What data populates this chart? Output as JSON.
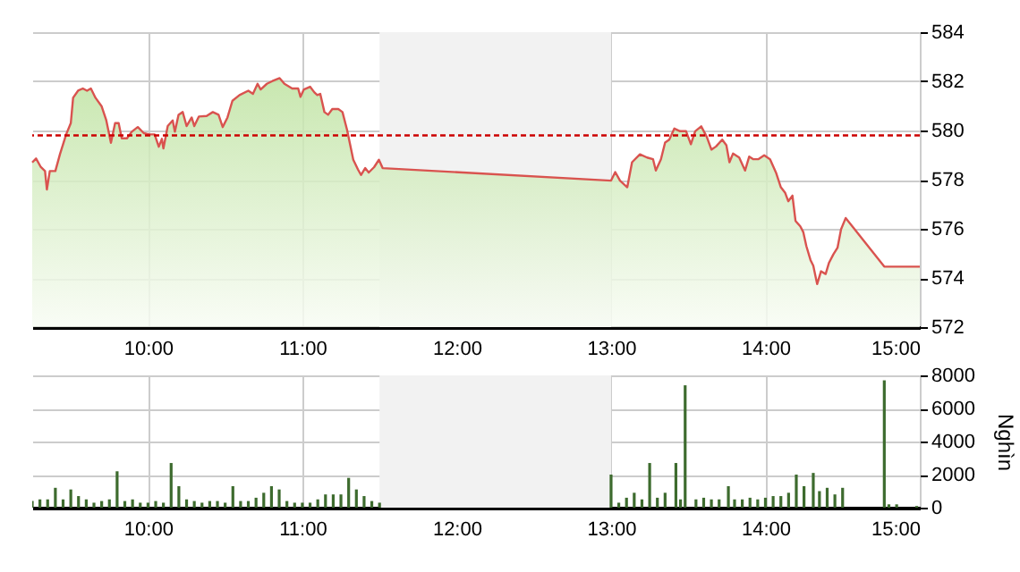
{
  "chart_data": [
    {
      "type": "area",
      "color": "#d9534f",
      "grid": true,
      "x": [
        9.25,
        9.275,
        9.306,
        9.333,
        9.345,
        9.364,
        9.4,
        9.43,
        9.47,
        9.5,
        9.515,
        9.547,
        9.578,
        9.605,
        9.63,
        9.66,
        9.7,
        9.73,
        9.76,
        9.787,
        9.81,
        9.83,
        9.864,
        9.895,
        9.934,
        9.973,
        10.01,
        10.043,
        10.07,
        10.09,
        10.1,
        10.128,
        10.16,
        10.174,
        10.198,
        10.225,
        10.25,
        10.283,
        10.3,
        10.33,
        10.38,
        10.42,
        10.457,
        10.484,
        10.515,
        10.547,
        10.593,
        10.65,
        10.68,
        10.71,
        10.73,
        10.77,
        10.806,
        10.853,
        10.884,
        10.934,
        10.973,
        10.988,
        11.01,
        11.05,
        11.078,
        11.097,
        11.116,
        11.143,
        11.167,
        11.194,
        11.233,
        11.26,
        11.29,
        11.33,
        11.36,
        11.38,
        11.407,
        11.43,
        11.465,
        11.496,
        11.52,
        13.0,
        13.027,
        13.058,
        13.105,
        13.136,
        13.187,
        13.233,
        13.272,
        13.29,
        13.323,
        13.35,
        13.377,
        13.41,
        13.447,
        13.486,
        13.517,
        13.545,
        13.584,
        13.62,
        13.65,
        13.68,
        13.72,
        13.747,
        13.767,
        13.79,
        13.83,
        13.868,
        13.895,
        13.922,
        13.953,
        13.992,
        14.03,
        14.07,
        14.1,
        14.128,
        14.148,
        14.175,
        14.195,
        14.226,
        14.245,
        14.265,
        14.292,
        14.31,
        14.335,
        14.36,
        14.39,
        14.412,
        14.44,
        14.467,
        14.49,
        14.52,
        14.77,
        15.0
      ],
      "values": [
        578.7,
        578.86,
        578.51,
        578.35,
        577.6,
        578.35,
        578.35,
        579.04,
        579.84,
        580.3,
        581.33,
        581.62,
        581.71,
        581.62,
        581.71,
        581.33,
        580.98,
        580.41,
        579.5,
        580.3,
        580.3,
        579.68,
        579.68,
        579.95,
        580.14,
        579.89,
        579.84,
        579.84,
        579.34,
        579.66,
        579.27,
        580.18,
        580.41,
        579.95,
        580.64,
        580.75,
        580.18,
        580.53,
        580.18,
        580.57,
        580.59,
        580.75,
        580.64,
        580.14,
        580.53,
        581.21,
        581.44,
        581.62,
        581.49,
        581.9,
        581.67,
        581.9,
        582.01,
        582.13,
        581.9,
        581.71,
        581.71,
        581.37,
        581.67,
        581.78,
        581.55,
        581.44,
        581.49,
        580.75,
        580.64,
        580.87,
        580.87,
        580.75,
        580.02,
        578.81,
        578.42,
        578.19,
        578.47,
        578.29,
        578.51,
        578.81,
        578.47,
        577.96,
        578.31,
        577.96,
        577.69,
        578.71,
        579.03,
        578.9,
        578.83,
        578.37,
        578.83,
        579.51,
        579.63,
        580.08,
        579.97,
        579.97,
        579.44,
        579.97,
        580.17,
        579.74,
        579.22,
        579.35,
        579.63,
        579.4,
        578.71,
        579.06,
        578.9,
        578.37,
        578.94,
        578.83,
        578.83,
        578.99,
        578.83,
        578.26,
        577.69,
        577.46,
        577.12,
        577.35,
        576.32,
        576.1,
        575.87,
        575.3,
        574.73,
        574.5,
        573.75,
        574.27,
        574.16,
        574.62,
        574.96,
        575.23,
        575.98,
        576.44,
        574.46,
        574.46
      ],
      "xlim": [
        9.25,
        15
      ],
      "ylim": [
        572,
        584
      ],
      "yticks": [
        572,
        574,
        576,
        578,
        580,
        582,
        584
      ],
      "xticks": [
        {
          "value": 10,
          "label": "10:00"
        },
        {
          "value": 11,
          "label": "11:00"
        },
        {
          "value": 12,
          "label": "12:00"
        },
        {
          "value": 13,
          "label": "13:00"
        },
        {
          "value": 14,
          "label": "14:00"
        },
        {
          "value": 15,
          "label": "15:00"
        }
      ],
      "ref_lines": [
        {
          "axis": "y",
          "value": 579.8,
          "color": "#cc0000",
          "line_style": "dashed"
        }
      ],
      "bands": [
        {
          "axis": "x",
          "from": 11.5,
          "to": 13,
          "color": "#f2f2f2"
        }
      ]
    },
    {
      "type": "bar",
      "color": "#3d6b2e",
      "grid": true,
      "ylabel": "Nghìn",
      "x": [
        9.25,
        9.3,
        9.35,
        9.4,
        9.45,
        9.5,
        9.55,
        9.6,
        9.65,
        9.7,
        9.75,
        9.8,
        9.85,
        9.9,
        9.95,
        10.0,
        10.05,
        10.1,
        10.15,
        10.2,
        10.25,
        10.3,
        10.35,
        10.4,
        10.45,
        10.5,
        10.55,
        10.6,
        10.65,
        10.7,
        10.75,
        10.8,
        10.85,
        10.9,
        10.95,
        11.0,
        11.05,
        11.1,
        11.15,
        11.2,
        11.25,
        11.3,
        11.35,
        11.4,
        11.45,
        11.5,
        13.0,
        13.05,
        13.1,
        13.15,
        13.2,
        13.25,
        13.3,
        13.35,
        13.42,
        13.45,
        13.48,
        13.55,
        13.6,
        13.65,
        13.7,
        13.76,
        13.8,
        13.85,
        13.9,
        13.95,
        14.0,
        14.05,
        14.1,
        14.15,
        14.2,
        14.25,
        14.31,
        14.35,
        14.4,
        14.45,
        14.5,
        14.77,
        14.8,
        14.85,
        14.98
      ],
      "values": [
        400,
        500,
        500,
        1200,
        500,
        1100,
        700,
        500,
        300,
        400,
        500,
        2200,
        400,
        500,
        300,
        300,
        400,
        300,
        2700,
        1300,
        500,
        400,
        300,
        400,
        400,
        300,
        1300,
        400,
        400,
        600,
        900,
        1300,
        1100,
        400,
        300,
        300,
        300,
        500,
        800,
        800,
        800,
        1800,
        1100,
        700,
        400,
        300,
        2000,
        300,
        600,
        900,
        500,
        2700,
        600,
        900,
        2700,
        500,
        7400,
        500,
        600,
        500,
        500,
        1300,
        500,
        500,
        600,
        500,
        600,
        700,
        700,
        900,
        2000,
        1300,
        2100,
        1000,
        1200,
        800,
        1200,
        7700,
        200,
        200,
        100
      ],
      "xlim": [
        9.25,
        15
      ],
      "ylim": [
        0,
        8000
      ],
      "yticks": [
        0,
        2000,
        4000,
        6000,
        8000
      ],
      "xticks": [
        {
          "value": 10,
          "label": "10:00"
        },
        {
          "value": 11,
          "label": "11:00"
        },
        {
          "value": 12,
          "label": "12:00"
        },
        {
          "value": 13,
          "label": "13:00"
        },
        {
          "value": 14,
          "label": "14:00"
        },
        {
          "value": 15,
          "label": "15:00"
        }
      ],
      "bands": [
        {
          "axis": "x",
          "from": 11.5,
          "to": 13,
          "color": "#f2f2f2"
        }
      ]
    }
  ]
}
